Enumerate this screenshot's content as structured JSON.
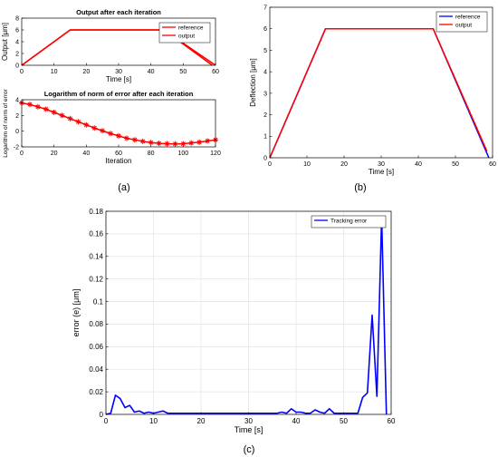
{
  "panels": {
    "a": "(a)",
    "b": "(b)",
    "c": "(c)"
  },
  "colors": {
    "red": "#ff0000",
    "blue": "#0000ff",
    "axis": "#000000",
    "grid": "#e6e6e6"
  },
  "chart_data": [
    {
      "id": "a_top",
      "type": "line",
      "title": "Output after each iteration",
      "xlabel": "Time [s]",
      "ylabel": "Output [μm]",
      "xlim": [
        0,
        60
      ],
      "ylim": [
        0,
        8
      ],
      "xticks": [
        0,
        10,
        20,
        30,
        40,
        50,
        60
      ],
      "yticks": [
        0,
        2,
        4,
        6,
        8
      ],
      "legend": {
        "position": "top-right",
        "entries": [
          "reference",
          "output"
        ]
      },
      "series": [
        {
          "name": "reference",
          "color": "#ff0000",
          "x": [
            0,
            15,
            44,
            60
          ],
          "y": [
            0,
            6,
            6,
            0
          ]
        },
        {
          "name": "output",
          "color": "#ff0000",
          "x": [
            0,
            15,
            44,
            58,
            59
          ],
          "y": [
            0,
            6,
            6,
            0.4,
            0
          ]
        }
      ]
    },
    {
      "id": "a_bottom",
      "type": "line",
      "title": "Logarithm of norm of error after each iteration",
      "xlabel": "Iteration",
      "ylabel": "Logarithm of norm of error",
      "xlim": [
        0,
        120
      ],
      "ylim": [
        -2,
        4
      ],
      "xticks": [
        0,
        20,
        40,
        60,
        80,
        100,
        120
      ],
      "yticks": [
        -2,
        0,
        2,
        4
      ],
      "series": [
        {
          "color": "#ff0000",
          "marker": "asterisk",
          "x": [
            0,
            5,
            10,
            15,
            20,
            25,
            30,
            35,
            40,
            45,
            50,
            55,
            60,
            65,
            70,
            75,
            80,
            85,
            90,
            95,
            100,
            105,
            110,
            115,
            120
          ],
          "y": [
            3.6,
            3.4,
            3.1,
            2.8,
            2.4,
            2.0,
            1.6,
            1.2,
            0.8,
            0.4,
            0.05,
            -0.3,
            -0.6,
            -0.9,
            -1.1,
            -1.3,
            -1.45,
            -1.55,
            -1.6,
            -1.62,
            -1.6,
            -1.5,
            -1.4,
            -1.25,
            -1.1
          ]
        }
      ]
    },
    {
      "id": "b",
      "type": "line",
      "xlabel": "Time [s]",
      "ylabel": "Deflection [μm]",
      "xlim": [
        0,
        60
      ],
      "ylim": [
        0,
        7
      ],
      "xticks": [
        0,
        10,
        20,
        30,
        40,
        50,
        60
      ],
      "yticks": [
        0,
        1,
        2,
        3,
        4,
        5,
        6,
        7
      ],
      "grid": false,
      "legend": {
        "position": "top-right",
        "entries": [
          "reference",
          "output"
        ]
      },
      "series": [
        {
          "name": "reference",
          "color": "#0000ff",
          "x": [
            0,
            15,
            44,
            59
          ],
          "y": [
            0,
            6,
            6,
            0
          ]
        },
        {
          "name": "output",
          "color": "#ff0000",
          "x": [
            0,
            15,
            44,
            58.5
          ],
          "y": [
            0,
            6,
            6,
            0.3
          ]
        }
      ]
    },
    {
      "id": "c",
      "type": "line",
      "xlabel": "Time [s]",
      "ylabel": "error (e) [μm]",
      "xlim": [
        0,
        60
      ],
      "ylim": [
        0,
        0.18
      ],
      "xticks": [
        0,
        10,
        20,
        30,
        40,
        50,
        60
      ],
      "yticks": [
        0,
        0.02,
        0.04,
        0.06,
        0.08,
        0.1,
        0.12,
        0.14,
        0.16,
        0.18
      ],
      "grid": true,
      "legend": {
        "position": "top-right",
        "entries": [
          "Tracking error"
        ]
      },
      "series": [
        {
          "name": "Tracking error",
          "color": "#0000ff",
          "x": [
            0,
            1,
            2,
            3,
            4,
            5,
            6,
            7,
            8,
            9,
            10,
            11,
            12,
            13,
            14,
            15,
            20,
            25,
            30,
            35,
            36,
            37,
            38,
            39,
            40,
            41,
            42,
            43,
            44,
            45,
            46,
            47,
            48,
            49,
            50,
            51,
            52,
            53,
            54,
            55,
            56,
            57,
            58,
            59
          ],
          "y": [
            0,
            0.001,
            0.017,
            0.014,
            0.006,
            0.008,
            0.002,
            0.003,
            0.001,
            0.002,
            0.001,
            0.002,
            0.003,
            0.001,
            0.001,
            0.001,
            0.001,
            0.001,
            0.001,
            0.001,
            0.001,
            0.002,
            0.001,
            0.005,
            0.002,
            0.002,
            0.001,
            0.001,
            0.004,
            0.002,
            0.001,
            0.005,
            0.001,
            0.001,
            0.001,
            0.001,
            0.001,
            0.001,
            0.015,
            0.019,
            0.088,
            0.016,
            0.175,
            0
          ]
        }
      ]
    }
  ]
}
